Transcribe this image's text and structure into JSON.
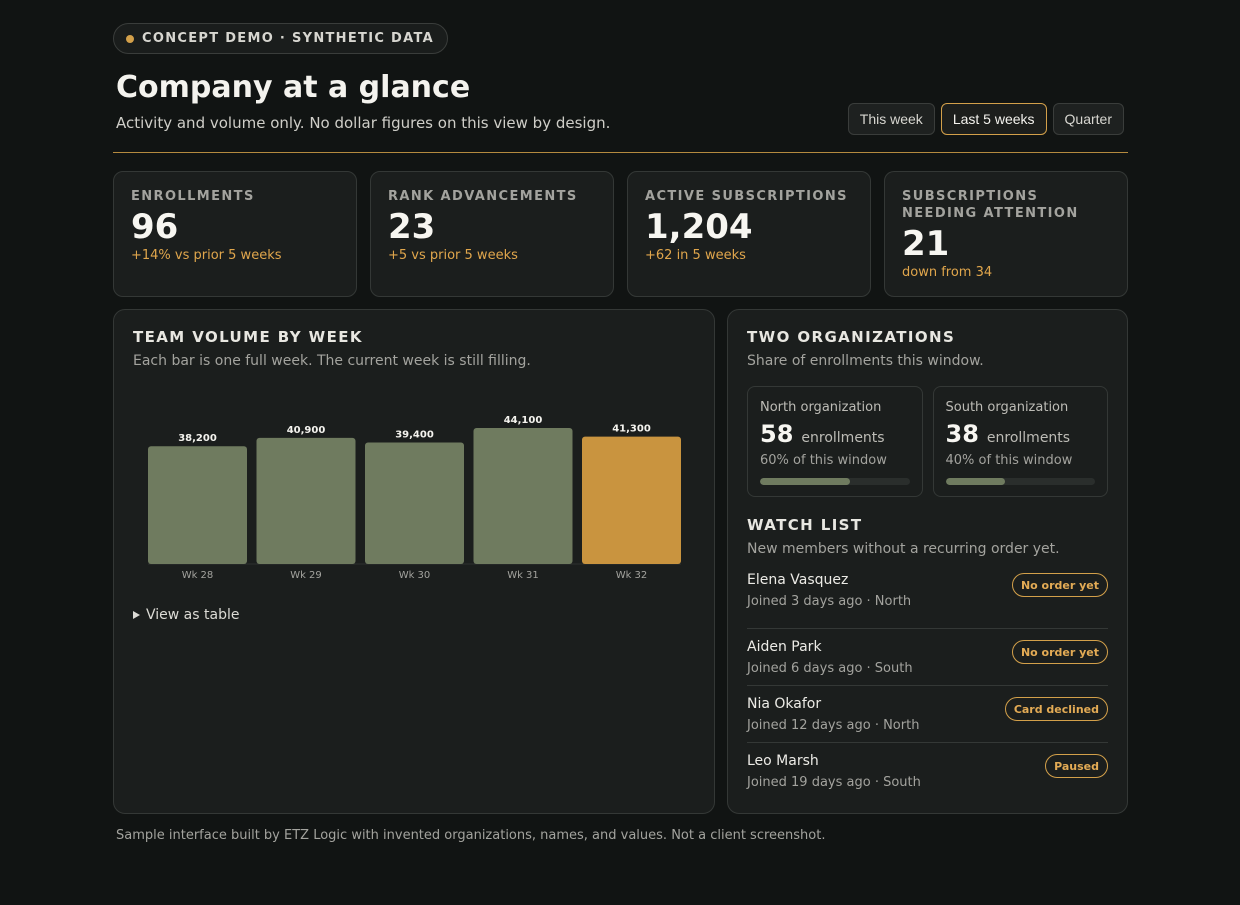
{
  "badge": {
    "label": "CONCEPT DEMO · SYNTHETIC DATA"
  },
  "header": {
    "title": "Company at a glance",
    "subtitle": "Activity and volume only. No dollar figures on this view by design.",
    "ranges": [
      "This week",
      "Last 5 weeks",
      "Quarter"
    ],
    "active_range": "Last 5 weeks"
  },
  "kpis": [
    {
      "label": "ENROLLMENTS",
      "value": "96",
      "delta": "+14% vs prior 5 weeks"
    },
    {
      "label": "RANK ADVANCEMENTS",
      "value": "23",
      "delta": "+5 vs prior 5 weeks"
    },
    {
      "label": "ACTIVE SUBSCRIPTIONS",
      "value": "1,204",
      "delta": "+62 in 5 weeks"
    },
    {
      "label": "SUBSCRIPTIONS NEEDING ATTENTION",
      "value": "21",
      "delta": "down from 34"
    }
  ],
  "volume": {
    "title": "TEAM VOLUME BY WEEK",
    "subtitle": "Each bar is one full week. The current week is still filling.",
    "toggle_label": "View as table"
  },
  "chart_data": {
    "type": "bar",
    "categories": [
      "Wk 28",
      "Wk 29",
      "Wk 30",
      "Wk 31",
      "Wk 32"
    ],
    "values": [
      38200,
      40900,
      39400,
      44100,
      41300
    ],
    "value_labels": [
      "38,200",
      "40,900",
      "39,400",
      "44,100",
      "41,300"
    ],
    "highlight_index": 4,
    "colors": {
      "bar": "#6f7b5f",
      "highlight": "#c9943f"
    },
    "ylim": [
      0,
      44100
    ],
    "grid": false
  },
  "orgs": {
    "title": "TWO ORGANIZATIONS",
    "subtitle": "Share of enrollments this window.",
    "unit": "enrollments",
    "items": [
      {
        "name": "North organization",
        "count": "58",
        "share_text": "60% of this window",
        "share": 0.6
      },
      {
        "name": "South organization",
        "count": "38",
        "share_text": "40% of this window",
        "share": 0.4
      }
    ]
  },
  "watch": {
    "title": "WATCH LIST",
    "subtitle": "New members without a recurring order yet.",
    "items": [
      {
        "name": "Elena Vasquez",
        "meta": "Joined 3 days ago · North",
        "status": "No order yet"
      },
      {
        "name": "Aiden Park",
        "meta": "Joined 6 days ago · South",
        "status": "No order yet"
      },
      {
        "name": "Nia Okafor",
        "meta": "Joined 12 days ago · North",
        "status": "Card declined"
      },
      {
        "name": "Leo Marsh",
        "meta": "Joined 19 days ago · South",
        "status": "Paused"
      }
    ]
  },
  "footer": {
    "text": "Sample interface built by ETZ Logic with invented organizations, names, and values. Not a client screenshot."
  }
}
